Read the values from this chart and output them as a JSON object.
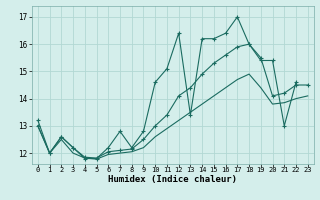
{
  "title": "",
  "xlabel": "Humidex (Indice chaleur)",
  "bg_color": "#d4eeeb",
  "grid_color": "#b2d8d4",
  "line_color": "#1a6b60",
  "xlim": [
    -0.5,
    23.5
  ],
  "ylim": [
    11.6,
    17.4
  ],
  "xticks": [
    0,
    1,
    2,
    3,
    4,
    5,
    6,
    7,
    8,
    9,
    10,
    11,
    12,
    13,
    14,
    15,
    16,
    17,
    18,
    19,
    20,
    21,
    22,
    23
  ],
  "yticks": [
    12,
    13,
    14,
    15,
    16,
    17
  ],
  "line1_x": [
    0,
    1,
    2,
    3,
    4,
    5,
    6,
    7,
    8,
    9,
    10,
    11,
    12,
    13,
    14,
    15,
    16,
    17,
    18,
    19,
    20,
    21,
    22
  ],
  "line1_y": [
    13.2,
    12.0,
    12.6,
    12.2,
    11.8,
    11.8,
    12.2,
    12.8,
    12.2,
    12.8,
    14.6,
    15.1,
    16.4,
    13.4,
    16.2,
    16.2,
    16.4,
    17.0,
    16.0,
    15.4,
    15.4,
    13.0,
    14.6
  ],
  "line2_x": [
    0,
    1,
    2,
    3,
    4,
    5,
    6,
    7,
    8,
    9,
    10,
    11,
    12,
    13,
    14,
    15,
    16,
    17,
    18,
    19,
    20,
    21,
    22,
    23
  ],
  "line2_y": [
    13.0,
    12.0,
    12.6,
    12.2,
    11.85,
    11.82,
    12.05,
    12.1,
    12.15,
    12.5,
    13.0,
    13.4,
    14.1,
    14.4,
    14.9,
    15.3,
    15.6,
    15.9,
    16.0,
    15.5,
    14.1,
    14.2,
    14.5,
    14.5
  ],
  "line3_x": [
    0,
    1,
    2,
    3,
    4,
    5,
    6,
    7,
    8,
    9,
    10,
    11,
    12,
    13,
    14,
    15,
    16,
    17,
    18,
    19,
    20,
    21,
    22,
    23
  ],
  "line3_y": [
    13.0,
    12.0,
    12.5,
    12.0,
    11.82,
    11.78,
    11.95,
    12.0,
    12.05,
    12.2,
    12.6,
    12.9,
    13.2,
    13.5,
    13.8,
    14.1,
    14.4,
    14.7,
    14.9,
    14.4,
    13.8,
    13.85,
    14.0,
    14.1
  ]
}
